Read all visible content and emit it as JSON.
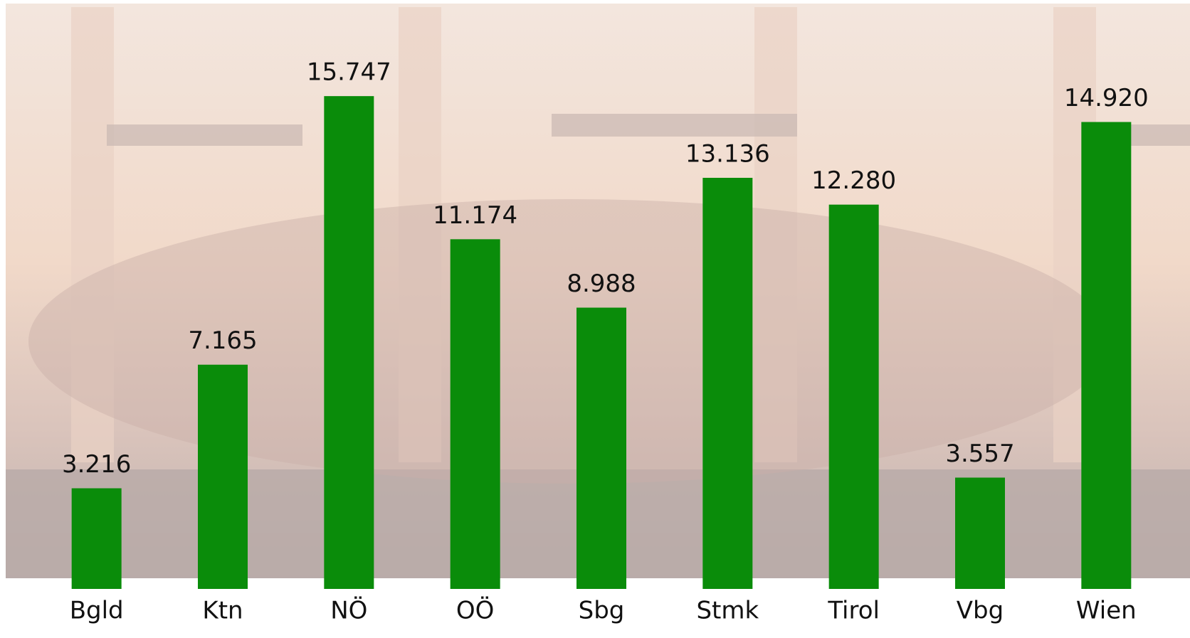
{
  "chart_data": {
    "type": "bar",
    "categories": [
      "Bgld",
      "Ktn",
      "NÖ",
      "OÖ",
      "Sbg",
      "Stmk",
      "Tirol",
      "Vbg",
      "Wien"
    ],
    "values": [
      3216,
      7165,
      15747,
      11174,
      8988,
      13136,
      12280,
      3557,
      14920
    ],
    "value_labels": [
      "3.216",
      "7.165",
      "15.747",
      "11.174",
      "8.988",
      "13.136",
      "12.280",
      "3.557",
      "14.920"
    ],
    "color": "#0a8c0a",
    "ylim": [
      0,
      18000
    ]
  }
}
